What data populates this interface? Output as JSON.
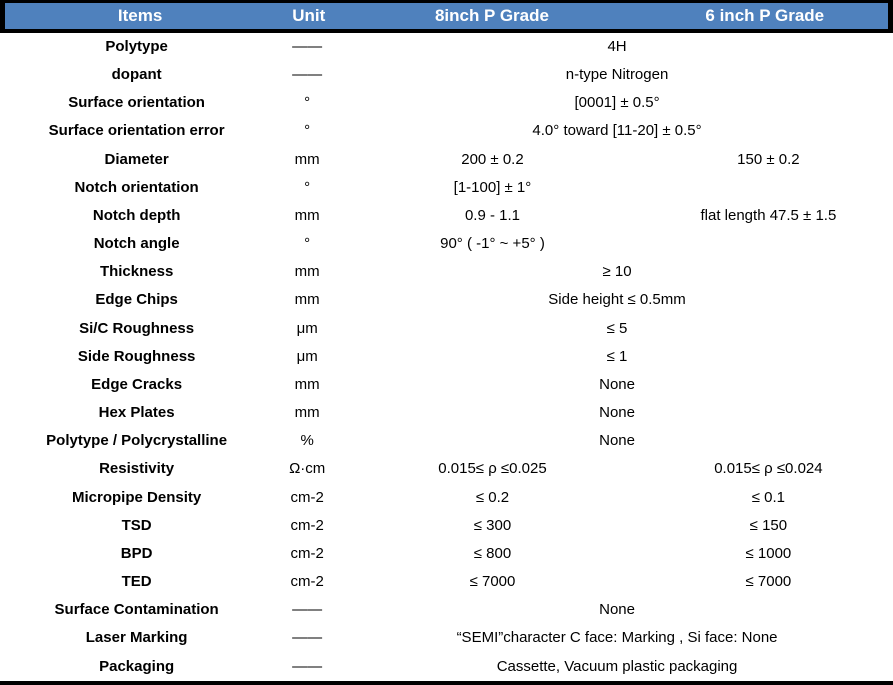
{
  "colors": {
    "header_bg": "#4f81bd",
    "header_text": "#ffffff",
    "border": "#000000",
    "text": "#000000"
  },
  "table": {
    "header": {
      "items": "Items",
      "unit": "Unit",
      "col8": "8inch P Grade",
      "col6": "6 inch P Grade"
    },
    "rows": [
      {
        "item": "Polytype",
        "unit": "——",
        "merged": "4H"
      },
      {
        "item": "dopant",
        "unit": "——",
        "merged": "n-type Nitrogen"
      },
      {
        "item": "Surface orientation",
        "unit": "°",
        "merged": "[0001] ± 0.5°"
      },
      {
        "item": "Surface orientation error",
        "unit": "°",
        "merged": "4.0° toward  [11-20]  ± 0.5°"
      },
      {
        "item": "Diameter",
        "unit": "mm",
        "col8": "200 ± 0.2",
        "col6": "150 ± 0.2"
      },
      {
        "item": "Notch orientation",
        "unit": "°",
        "col8": "[1-100] ± 1°",
        "col6": ""
      },
      {
        "item": "Notch depth",
        "unit": "mm",
        "col8": "0.9 - 1.1",
        "col6": "flat length 47.5 ± 1.5"
      },
      {
        "item": "Notch angle",
        "unit": "°",
        "col8": "90° ( -1° ~ +5° )",
        "col6": ""
      },
      {
        "item": "Thickness",
        "unit": "mm",
        "merged": "≥ 10"
      },
      {
        "item": "Edge Chips",
        "unit": "mm",
        "merged": "Side height ≤ 0.5mm"
      },
      {
        "item": "Si/C Roughness",
        "unit": "μm",
        "merged": "≤ 5"
      },
      {
        "item": "Side Roughness",
        "unit": "μm",
        "merged": "≤ 1"
      },
      {
        "item": "Edge Cracks",
        "unit": "mm",
        "merged": "None"
      },
      {
        "item": "Hex Plates",
        "unit": "mm",
        "merged": "None"
      },
      {
        "item": "Polytype / Polycrystalline",
        "unit": "%",
        "merged": "None"
      },
      {
        "item": "Resistivity",
        "unit": "Ω·cm",
        "col8": "0.015≤ ρ ≤0.025",
        "col6": "0.015≤ ρ ≤0.024"
      },
      {
        "item": "Micropipe Density",
        "unit": "cm-2",
        "col8": "≤ 0.2",
        "col6": "≤ 0.1"
      },
      {
        "item": "TSD",
        "unit": "cm-2",
        "col8": "≤ 300",
        "col6": "≤ 150"
      },
      {
        "item": "BPD",
        "unit": "cm-2",
        "col8": "≤ 800",
        "col6": "≤ 1000"
      },
      {
        "item": "TED",
        "unit": "cm-2",
        "col8": "≤ 7000",
        "col6": "≤ 7000"
      },
      {
        "item": "Surface Contamination",
        "unit": "——",
        "merged": "None"
      },
      {
        "item": "Laser Marking",
        "unit": "——",
        "merged": "“SEMI”character C face: Marking , Si face: None"
      },
      {
        "item": "Packaging",
        "unit": "——",
        "merged": "Cassette, Vacuum plastic packaging"
      }
    ]
  }
}
